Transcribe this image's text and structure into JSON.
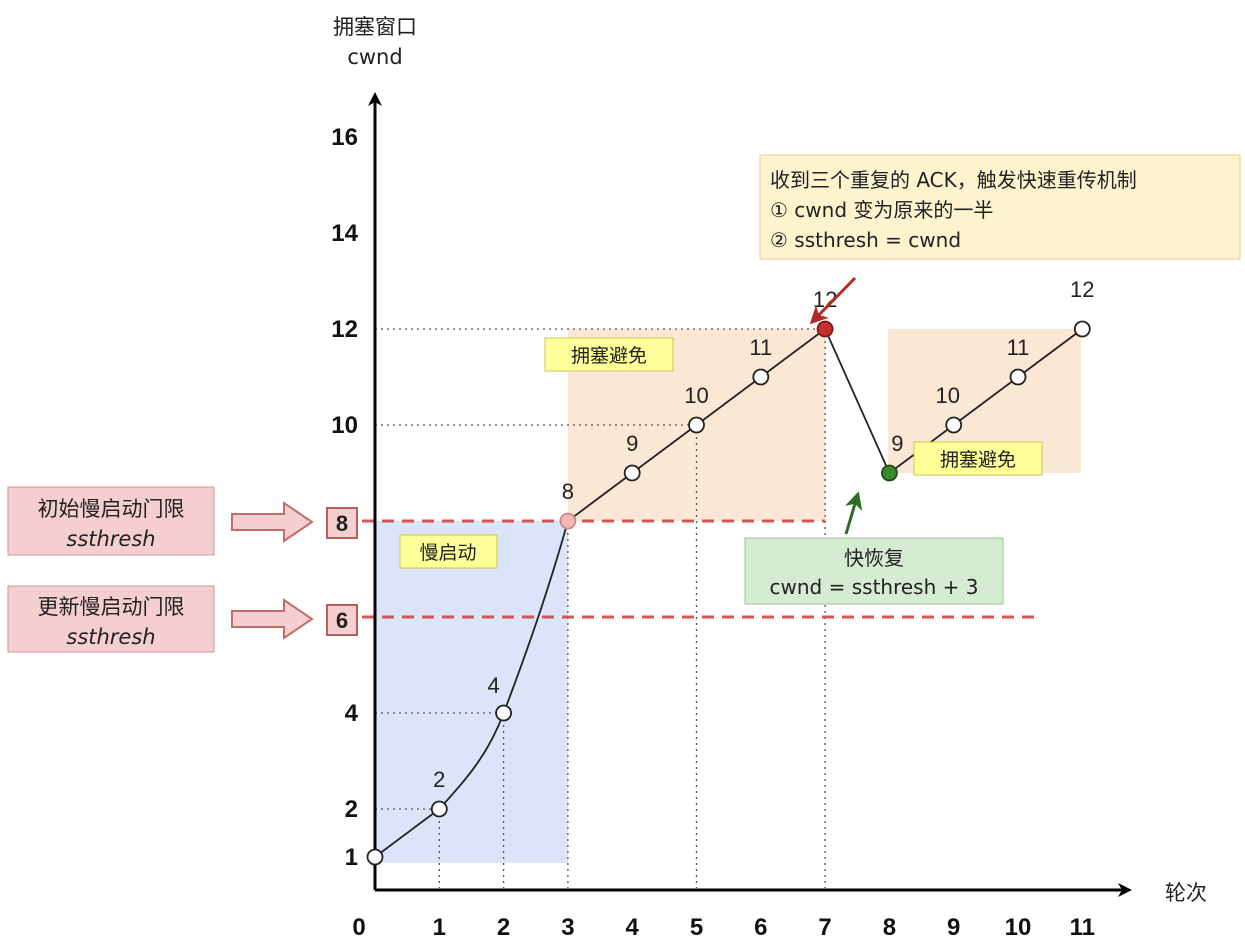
{
  "chart_data": {
    "type": "line",
    "y_title": "拥塞窗口",
    "y_title_sub": "cwnd",
    "x_title": "轮次",
    "xlim": [
      0,
      11
    ],
    "ylim": [
      1,
      16
    ],
    "x_ticks": [
      "0",
      "1",
      "2",
      "3",
      "4",
      "5",
      "6",
      "7",
      "8",
      "9",
      "10",
      "11"
    ],
    "y_ticks": [
      {
        "value": 1,
        "label": "1"
      },
      {
        "value": 2,
        "label": "2"
      },
      {
        "value": 4,
        "label": "4"
      },
      {
        "value": 10,
        "label": "10"
      },
      {
        "value": 12,
        "label": "12"
      },
      {
        "value": 14,
        "label": "14"
      },
      {
        "value": 16,
        "label": "16"
      }
    ],
    "points": [
      {
        "x": 0,
        "y": 1,
        "label": "",
        "style": "open"
      },
      {
        "x": 1,
        "y": 2,
        "label": "2",
        "style": "open"
      },
      {
        "x": 2,
        "y": 4,
        "label": "4",
        "style": "open"
      },
      {
        "x": 3,
        "y": 8,
        "label": "8",
        "style": "pink"
      },
      {
        "x": 4,
        "y": 9,
        "label": "9",
        "style": "open"
      },
      {
        "x": 5,
        "y": 10,
        "label": "10",
        "style": "open"
      },
      {
        "x": 6,
        "y": 11,
        "label": "11",
        "style": "open"
      },
      {
        "x": 7,
        "y": 12,
        "label": "12",
        "style": "red"
      },
      {
        "x": 8,
        "y": 9,
        "label": "9",
        "style": "green"
      },
      {
        "x": 9,
        "y": 10,
        "label": "10",
        "style": "open"
      },
      {
        "x": 10,
        "y": 11,
        "label": "11",
        "style": "open"
      },
      {
        "x": 11,
        "y": 12,
        "label": "12",
        "style": "open"
      }
    ],
    "thresholds": [
      {
        "value": 8,
        "label": "8",
        "box_text": [
          "初始慢启动门限",
          "ssthresh"
        ]
      },
      {
        "value": 6,
        "label": "6",
        "box_text": [
          "更新慢启动门限",
          "ssthresh"
        ]
      }
    ],
    "regions": {
      "slow_start": "慢启动",
      "avoid_1": "拥塞避免",
      "avoid_2": "拥塞避免"
    },
    "annotations": {
      "three_ack": [
        "收到三个重复的 ACK，触发快速重传机制",
        "① cwnd 变为原来的一半",
        "② ssthresh = cwnd"
      ],
      "fast_recovery": [
        "快恢复",
        "cwnd = ssthresh + 3"
      ]
    },
    "colors": {
      "slow_start_fill": "#dbe4f8",
      "avoid_fill": "#fbe8d4",
      "threshold_line": "#d9534f",
      "tag_fill": "#ffff99",
      "note_fill": "#fdf3cf",
      "recovery_fill": "#d6ecd2",
      "red_point": "#c9302c",
      "green_point": "#3a8a2e",
      "pink_point": "#f2b8b4",
      "sidebox_fill": "#f5cfcf"
    }
  }
}
